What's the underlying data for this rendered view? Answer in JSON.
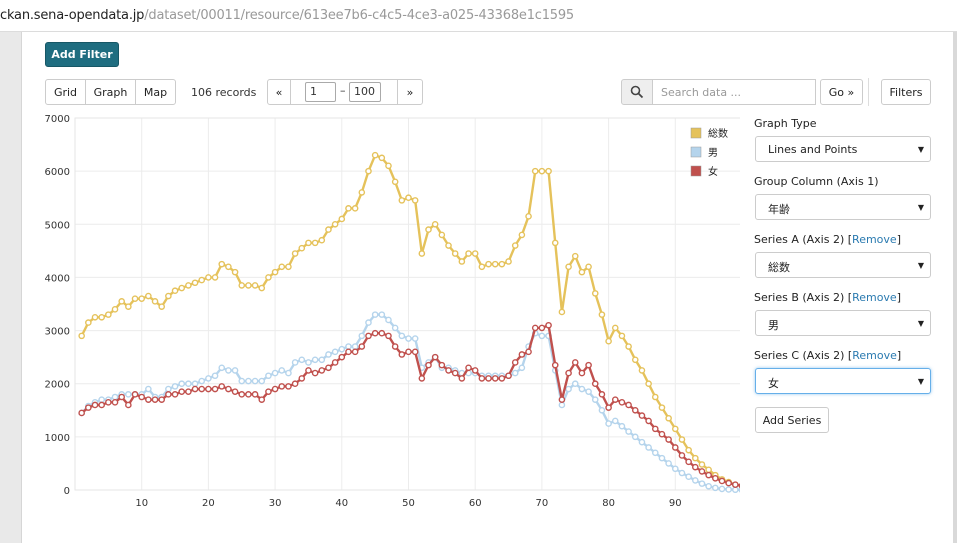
{
  "url": {
    "host": "ckan.sena-opendata.jp",
    "path": "/dataset/00011/resource/613ee7b6-c4c5-4ce3-a025-43368e1c1595"
  },
  "toolbar": {
    "add_filter": "Add Filter",
    "views": [
      "Grid",
      "Graph",
      "Map"
    ],
    "records": "106 records",
    "pager_prev": "«",
    "pager_from": "1",
    "pager_dash": "–",
    "pager_to": "100",
    "pager_next": "»",
    "search_placeholder": "Search data ...",
    "go": "Go »",
    "filters": "Filters"
  },
  "sidebar": {
    "graph_type_label": "Graph Type",
    "graph_type_value": "Lines and Points",
    "group_column_label": "Group Column (Axis 1)",
    "group_column_value": "年齢",
    "series": [
      {
        "label": "Series A (Axis 2) [",
        "remove": "Remove",
        "close": "]",
        "value": "総数"
      },
      {
        "label": "Series B (Axis 2) [",
        "remove": "Remove",
        "close": "]",
        "value": "男"
      },
      {
        "label": "Series C (Axis 2) [",
        "remove": "Remove",
        "close": "]",
        "value": "女"
      }
    ],
    "add_series": "Add Series"
  },
  "chart_data": {
    "type": "line",
    "x_ticks": [
      10,
      20,
      30,
      40,
      50,
      60,
      70,
      80,
      90
    ],
    "y_ticks": [
      0,
      1000,
      2000,
      3000,
      4000,
      5000,
      6000,
      7000
    ],
    "xlim": [
      0,
      100
    ],
    "ylim": [
      0,
      7000
    ],
    "grid": true,
    "legend_position": "top-right",
    "colors": {
      "total": "#e5c25b",
      "male": "#b5d4ec",
      "female": "#c0504d"
    },
    "series": [
      {
        "name": "総数",
        "color": "#e5c25b",
        "values": [
          2900,
          3150,
          3250,
          3250,
          3300,
          3400,
          3550,
          3450,
          3600,
          3600,
          3650,
          3550,
          3450,
          3650,
          3750,
          3800,
          3850,
          3900,
          3950,
          4000,
          4000,
          4250,
          4200,
          4100,
          3850,
          3850,
          3850,
          3800,
          4000,
          4100,
          4200,
          4200,
          4450,
          4550,
          4650,
          4650,
          4700,
          4900,
          5000,
          5100,
          5300,
          5300,
          5600,
          6000,
          6300,
          6250,
          6100,
          5800,
          5450,
          5500,
          5450,
          4450,
          4900,
          5000,
          4800,
          4600,
          4450,
          4300,
          4450,
          4450,
          4200,
          4250,
          4250,
          4250,
          4300,
          4600,
          4800,
          5150,
          6000,
          6000,
          6000,
          4650,
          3350,
          4200,
          4400,
          4100,
          4200,
          3700,
          3300,
          2800,
          3050,
          2900,
          2700,
          2450,
          2250,
          2000,
          1750,
          1550,
          1350,
          1150,
          950,
          750,
          600,
          480,
          380,
          280,
          200,
          150,
          100,
          80
        ]
      },
      {
        "name": "男",
        "color": "#b5d4ec",
        "values": [
          1450,
          1580,
          1650,
          1700,
          1700,
          1750,
          1800,
          1800,
          1800,
          1800,
          1900,
          1750,
          1750,
          1900,
          1950,
          2000,
          2000,
          2000,
          2050,
          2100,
          2150,
          2300,
          2250,
          2250,
          2050,
          2050,
          2050,
          2050,
          2150,
          2200,
          2250,
          2200,
          2400,
          2450,
          2400,
          2450,
          2450,
          2550,
          2600,
          2650,
          2700,
          2700,
          2900,
          3150,
          3300,
          3300,
          3200,
          3050,
          2900,
          2850,
          2850,
          2300,
          2400,
          2500,
          2300,
          2300,
          2250,
          2200,
          2200,
          2200,
          2150,
          2150,
          2150,
          2150,
          2150,
          2200,
          2300,
          2700,
          2950,
          2900,
          2900,
          2250,
          1600,
          1900,
          2000,
          1900,
          1850,
          1700,
          1500,
          1250,
          1300,
          1200,
          1100,
          1000,
          900,
          800,
          700,
          600,
          500,
          400,
          320,
          250,
          180,
          120,
          70,
          40,
          20,
          10,
          5,
          0
        ]
      },
      {
        "name": "女",
        "color": "#c0504d",
        "values": [
          1450,
          1550,
          1600,
          1600,
          1650,
          1650,
          1750,
          1600,
          1800,
          1750,
          1700,
          1700,
          1700,
          1800,
          1800,
          1850,
          1850,
          1900,
          1900,
          1900,
          1900,
          1950,
          1900,
          1850,
          1800,
          1800,
          1800,
          1700,
          1850,
          1900,
          1950,
          1950,
          2000,
          2100,
          2250,
          2200,
          2250,
          2300,
          2400,
          2500,
          2600,
          2600,
          2700,
          2900,
          2950,
          2950,
          2900,
          2700,
          2550,
          2600,
          2600,
          2100,
          2350,
          2500,
          2350,
          2250,
          2200,
          2100,
          2300,
          2250,
          2100,
          2100,
          2100,
          2100,
          2150,
          2400,
          2550,
          2600,
          3050,
          3050,
          3100,
          2350,
          1700,
          2200,
          2400,
          2200,
          2350,
          2000,
          1800,
          1550,
          1700,
          1650,
          1600,
          1500,
          1400,
          1300,
          1150,
          1050,
          950,
          800,
          650,
          530,
          430,
          350,
          280,
          220,
          170,
          130,
          100,
          80
        ]
      }
    ]
  }
}
